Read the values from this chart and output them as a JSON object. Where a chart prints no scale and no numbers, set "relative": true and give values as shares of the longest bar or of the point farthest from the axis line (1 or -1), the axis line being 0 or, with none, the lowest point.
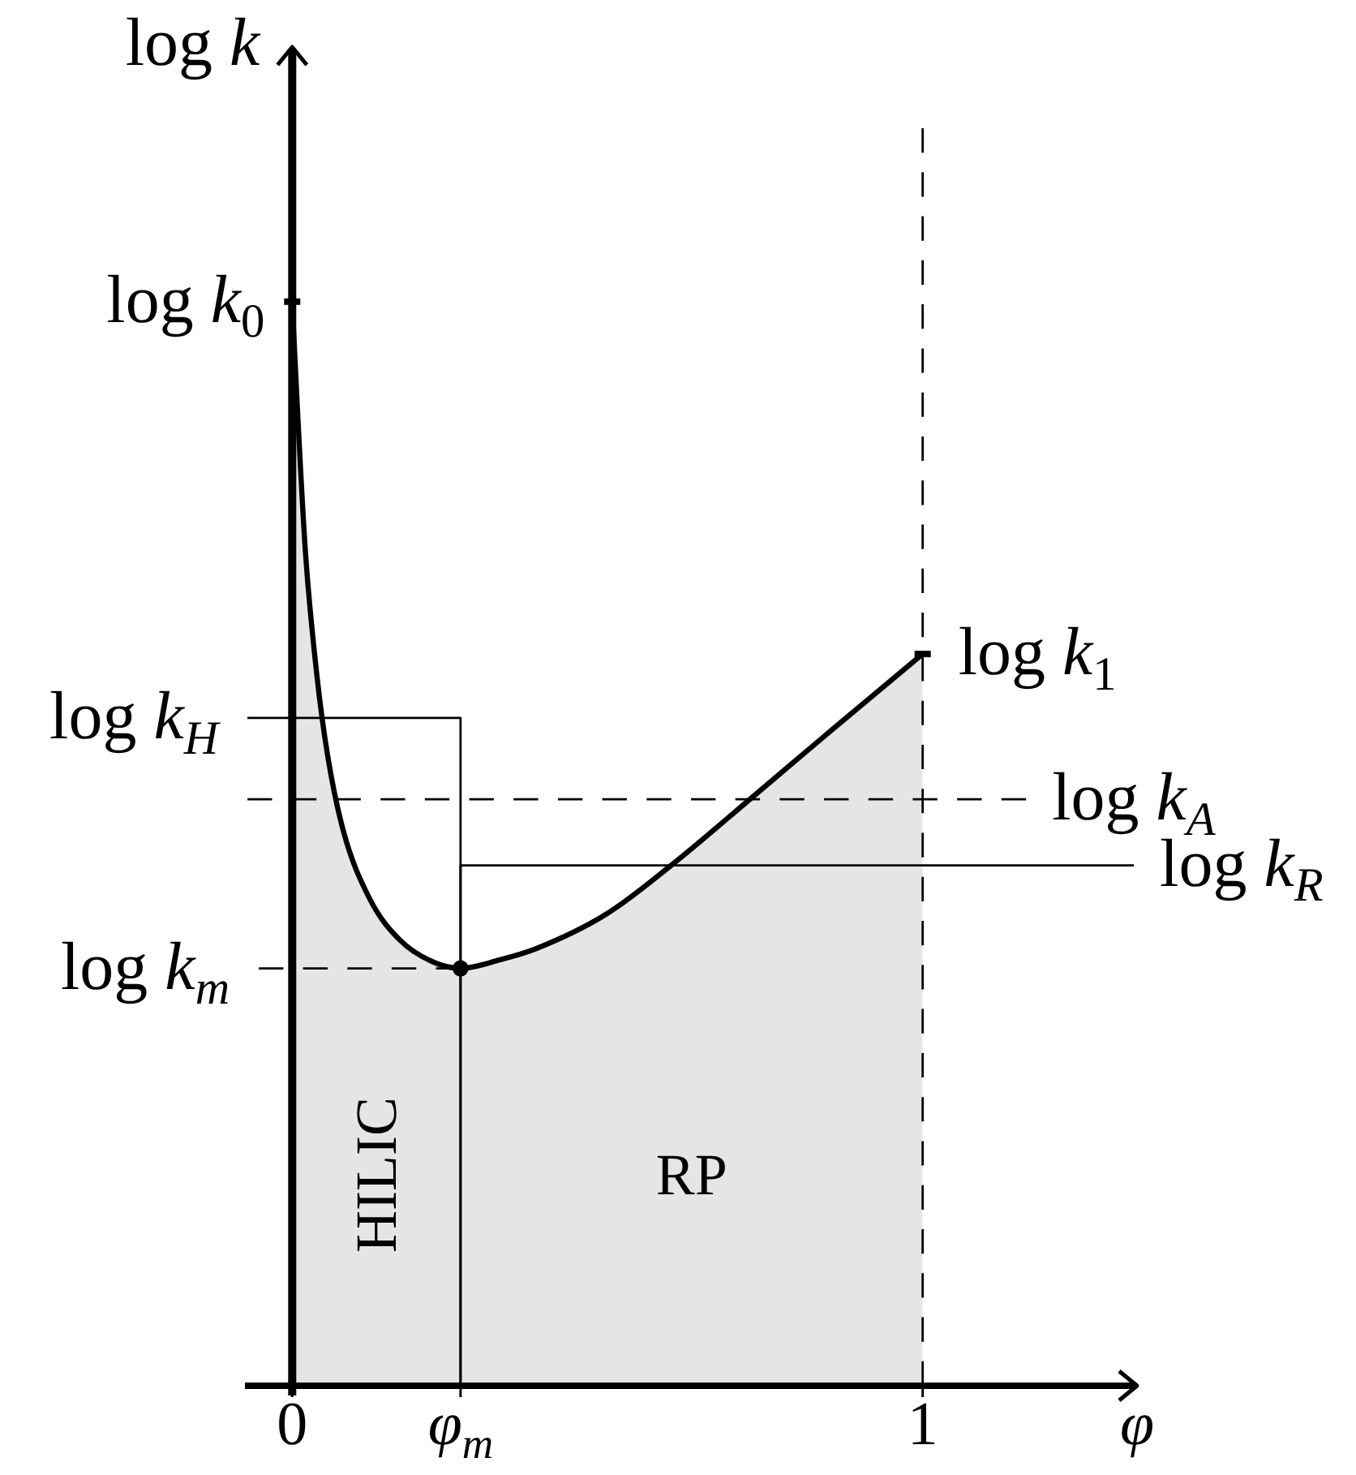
{
  "chart_data": {
    "type": "area",
    "relative": true,
    "xlabel": "φ",
    "ylabel": "log k",
    "xlim": [
      -0.075,
      1.34
    ],
    "xticks": [
      0,
      {
        "value": 0.267,
        "label": "φ$_{m}$"
      },
      1
    ],
    "series": [
      {
        "color": "#000000",
        "x": [
          0,
          0.009,
          0.021,
          0.039,
          0.056,
          0.081,
          0.124,
          0.171,
          0.223,
          0.267,
          0.33,
          0.386,
          0.498,
          0.601,
          0.73,
          0.858,
          1
        ],
        "values": [
          1,
          0.893,
          0.769,
          0.656,
          0.582,
          0.512,
          0.448,
          0.411,
          0.391,
          0.385,
          0.393,
          0.403,
          0.435,
          0.48,
          0.543,
          0.606,
          0.675
        ]
      },
      {
        "type": "line",
        "name": "log k$_{H}$",
        "color": "#000000",
        "x": [
          0.267,
          0.267,
          -0.071
        ],
        "values": [
          0,
          0.616,
          0.616
        ]
      },
      {
        "type": "line",
        "name": "log k$_{A}$",
        "color": "#000000",
        "line_style": "dashed",
        "x": [
          -0.071,
          1.164
        ],
        "values": [
          0.541,
          0.541
        ]
      },
      {
        "type": "line",
        "name": "log k$_{R}$",
        "color": "#000000",
        "x": [
          0.267,
          0.267,
          1.335
        ],
        "values": [
          0,
          0.48,
          0.48
        ]
      },
      {
        "type": "line",
        "name": "log k$_{m}$",
        "color": "#000000",
        "line_style": "dashed",
        "x": [
          0.267,
          -0.053
        ],
        "values": [
          0.385,
          0.385
        ]
      },
      {
        "type": "scatter",
        "color": "#000000",
        "marker": "circle",
        "x": [
          0.267
        ],
        "values": [
          0.385
        ]
      }
    ],
    "ref_lines": [
      {
        "axis": "x",
        "value": 1,
        "line_style": "dashed",
        "color": "#000000"
      }
    ],
    "annotations": [
      {
        "text": "log k$_{0}$",
        "x": 0,
        "y": 1
      },
      {
        "text": "log k$_{1}$",
        "x": 1,
        "y": 0.675
      },
      "HILIC",
      "RP"
    ]
  }
}
